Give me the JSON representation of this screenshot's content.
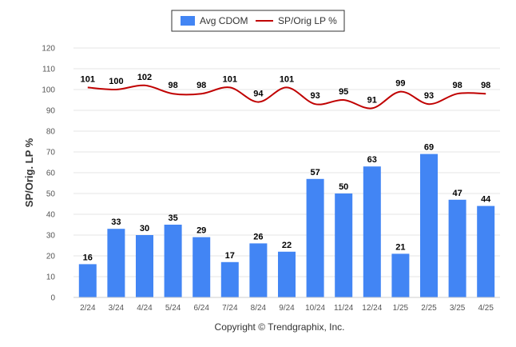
{
  "chart_data": {
    "type": "bar",
    "categories": [
      "2/24",
      "3/24",
      "4/24",
      "5/24",
      "6/24",
      "7/24",
      "8/24",
      "9/24",
      "10/24",
      "11/24",
      "12/24",
      "1/25",
      "2/25",
      "3/25",
      "4/25"
    ],
    "series": [
      {
        "name": "Avg CDOM",
        "type": "bar",
        "color": "#4285f4",
        "values": [
          16,
          33,
          30,
          35,
          29,
          17,
          26,
          22,
          57,
          50,
          63,
          21,
          69,
          47,
          44
        ]
      },
      {
        "name": "SP/Orig LP %",
        "type": "line",
        "color": "#c00000",
        "values": [
          101,
          100,
          102,
          98,
          98,
          101,
          94,
          101,
          93,
          95,
          91,
          99,
          93,
          98,
          98
        ]
      }
    ],
    "ylabel": "SP/Orig. LP %",
    "ylim": [
      0,
      120
    ],
    "yticks": [
      0,
      10,
      20,
      30,
      40,
      50,
      60,
      70,
      80,
      90,
      100,
      110,
      120
    ],
    "grid": true,
    "legend_position": "top-center",
    "credit": "Copyright © Trendgraphix, Inc."
  }
}
